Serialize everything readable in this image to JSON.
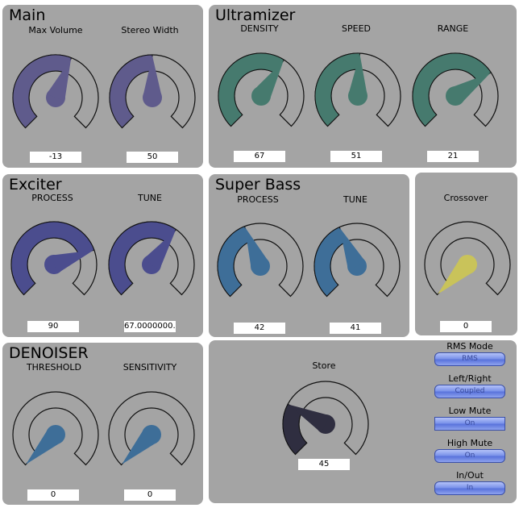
{
  "panels": {
    "main": {
      "title": "Main"
    },
    "ultramizer": {
      "title": "Ultramizer"
    },
    "exciter": {
      "title": "Exciter"
    },
    "superbass": {
      "title": "Super Bass"
    },
    "crossover": {
      "title": ""
    },
    "denoiser": {
      "title": "DENOISER"
    },
    "store": {
      "title": ""
    }
  },
  "knobs": [
    {
      "id": "max-volume",
      "label": "Max Volume",
      "value": "-13",
      "fraction": 0.58,
      "color": "#5f5b8c"
    },
    {
      "id": "stereo-width",
      "label": "Stereo Width",
      "value": "50",
      "fraction": 0.5,
      "color": "#5f5b8c"
    },
    {
      "id": "density",
      "label": "DENSITY",
      "value": "67",
      "fraction": 0.62,
      "color": "#467a6e"
    },
    {
      "id": "speed",
      "label": "SPEED",
      "value": "51",
      "fraction": 0.51,
      "color": "#467a6e"
    },
    {
      "id": "range",
      "label": "RANGE",
      "value": "21",
      "fraction": 0.71,
      "color": "#467a6e"
    },
    {
      "id": "exciter-process",
      "label": "PROCESS",
      "value": "90",
      "fraction": 0.76,
      "color": "#4b4d8e"
    },
    {
      "id": "exciter-tune",
      "label": "TUNE",
      "value": "67.0000000...",
      "fraction": 0.63,
      "color": "#4b4d8e"
    },
    {
      "id": "superbass-process",
      "label": "PROCESS",
      "value": "42",
      "fraction": 0.42,
      "color": "#3e6e98"
    },
    {
      "id": "superbass-tune",
      "label": "TUNE",
      "value": "41",
      "fraction": 0.41,
      "color": "#3e6e98"
    },
    {
      "id": "crossover",
      "label": "Crossover",
      "value": "0",
      "fraction": 0.0,
      "color": "#c9c35a"
    },
    {
      "id": "threshold",
      "label": "THRESHOLD",
      "value": "0",
      "fraction": 0.0,
      "color": "#3e6e98"
    },
    {
      "id": "sensitivity",
      "label": "SENSITIVITY",
      "value": "0",
      "fraction": 0.0,
      "color": "#3e6e98"
    },
    {
      "id": "store",
      "label": "Store",
      "value": "45",
      "fraction": 0.27,
      "color": "#2f2e40"
    }
  ],
  "buttons": [
    {
      "id": "rms-mode",
      "label": "RMS Mode",
      "value": "RMS"
    },
    {
      "id": "left-right",
      "label": "Left/Right",
      "value": "Coupled"
    },
    {
      "id": "low-mute",
      "label": "Low Mute",
      "value": "On"
    },
    {
      "id": "high-mute",
      "label": "High Mute",
      "value": "On"
    },
    {
      "id": "in-out",
      "label": "In/Out",
      "value": "In"
    }
  ]
}
